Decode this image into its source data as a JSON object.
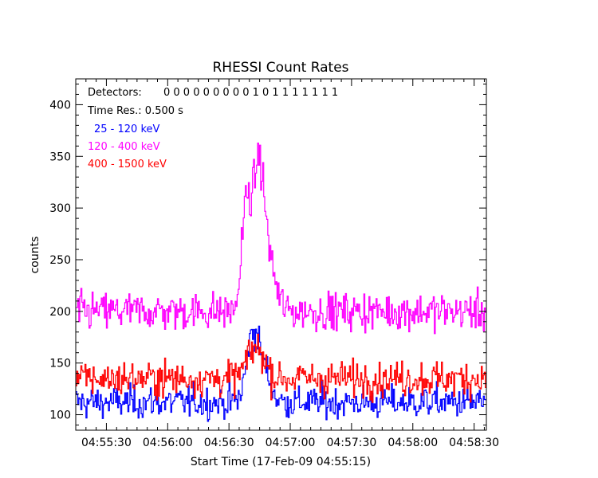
{
  "chart_data": {
    "type": "line",
    "title": "RHESSI Count Rates",
    "xlabel": "Start Time (17-Feb-09 04:55:15)",
    "ylabel": "counts",
    "x_unit": "s",
    "xlim": [
      0,
      201
    ],
    "ylim": [
      85,
      425
    ],
    "x_ticks": [
      {
        "t": 15,
        "label": "04:55:30"
      },
      {
        "t": 45,
        "label": "04:56:00"
      },
      {
        "t": 75,
        "label": "04:56:30"
      },
      {
        "t": 105,
        "label": "04:57:00"
      },
      {
        "t": 135,
        "label": "04:57:30"
      },
      {
        "t": 165,
        "label": "04:58:00"
      },
      {
        "t": 195,
        "label": "04:58:30"
      }
    ],
    "y_ticks": [
      100,
      150,
      200,
      250,
      300,
      350,
      400
    ],
    "legend": {
      "detectors_label": "Detectors:",
      "detectors_value": "0 0 0 0 0 0 0 0 0 1 0 1 1 1 1 1 1 1",
      "time_res": "Time Res.: 0.500 s"
    },
    "series": [
      {
        "name": "25 - 120 keV",
        "color": "#0000ff",
        "baseline": 112,
        "noise": 11,
        "peak": [
          {
            "t": 86,
            "amp": 55,
            "w": 4
          },
          {
            "t": 91,
            "amp": 35,
            "w": 5
          }
        ]
      },
      {
        "name": "120 - 400 keV",
        "color": "#ff00ff",
        "baseline": 200,
        "noise": 13,
        "peak": [
          {
            "t": 83,
            "amp": 95,
            "w": 3
          },
          {
            "t": 89,
            "amp": 130,
            "w": 4
          },
          {
            "t": 94,
            "amp": 45,
            "w": 5
          }
        ]
      },
      {
        "name": "400 - 1500 keV",
        "color": "#ff0000",
        "baseline": 135,
        "noise": 12,
        "peak": [
          {
            "t": 88,
            "amp": 30,
            "w": 6
          }
        ]
      }
    ]
  }
}
